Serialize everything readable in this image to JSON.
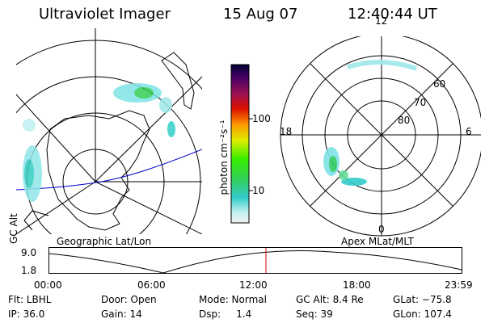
{
  "header": {
    "instrument": "Ultraviolet Imager",
    "date": "15 Aug 07",
    "time": "12:40:44 UT"
  },
  "geo_panel": {
    "label": "Geographic Lat/Lon"
  },
  "mag_panel": {
    "label": "Apex MLat/MLT",
    "mlt_labels": [
      "12",
      "18",
      "6",
      "0"
    ],
    "lat_labels": [
      "60",
      "70",
      "80"
    ]
  },
  "colorbar": {
    "unit_label": "photon cm⁻²s⁻¹",
    "ticks": [
      "100",
      "10"
    ]
  },
  "altitude_plot": {
    "ylabel": "GC Alt",
    "y_ticks": [
      "9.0",
      "1.8"
    ],
    "x_ticks": [
      "00:00",
      "06:00",
      "12:00",
      "18:00",
      "23:59"
    ]
  },
  "info_rows": [
    [
      "Flt: LBHL",
      "Door: Open",
      "Mode: Normal",
      "GC Alt: 8.4 Re",
      "GLat: −75.8"
    ],
    [
      "IP: 36.0",
      "Gain: 14",
      "Dsp:     1.4",
      "Seq: 39",
      "GLon: 107.4"
    ]
  ],
  "colors": {
    "orbit_line": "#0000cc",
    "time_marker": "#cc0000"
  }
}
